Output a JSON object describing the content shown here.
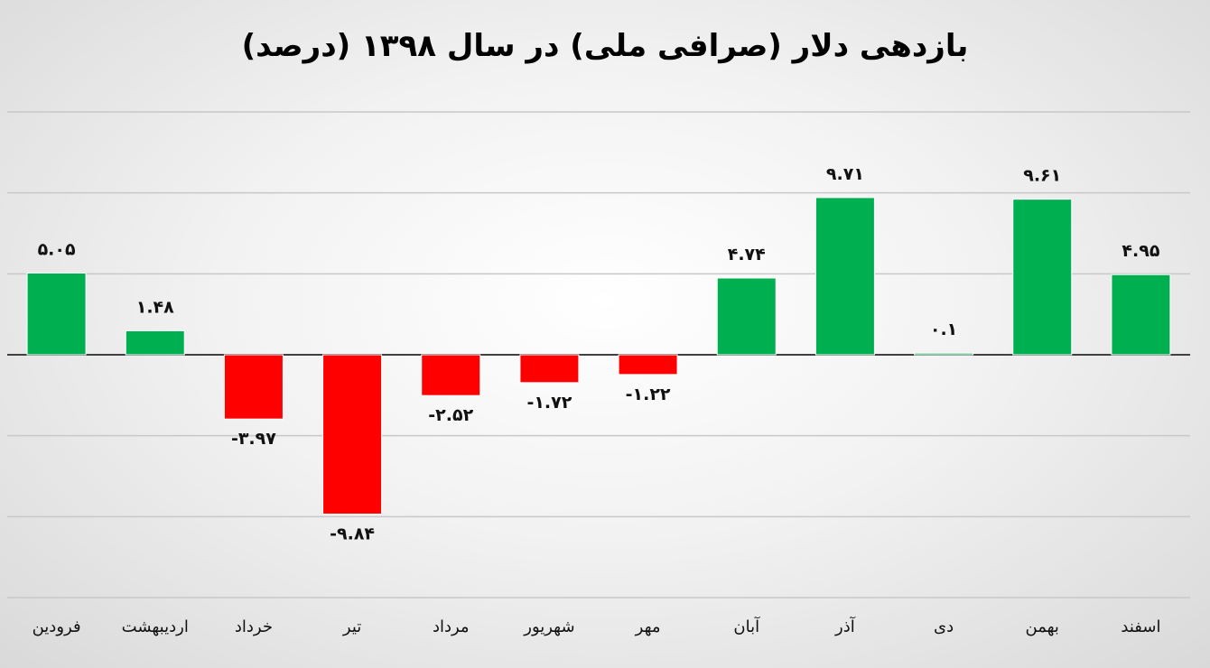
{
  "chart_data": {
    "type": "bar",
    "title": "بازدهی دلار (صرافی ملی) در سال ۱۳۹۸ (درصد)",
    "categories": [
      "فرودین",
      "اردیبهشت",
      "خرداد",
      "تیر",
      "مرداد",
      "شهریور",
      "مهر",
      "آبان",
      "آذر",
      "دی",
      "بهمن",
      "اسفند"
    ],
    "values": [
      5.05,
      1.48,
      -3.97,
      -9.84,
      -2.52,
      -1.72,
      -1.22,
      4.74,
      9.71,
      0.1,
      9.61,
      4.95
    ],
    "data_labels": [
      "۵.۰۵",
      "۱.۴۸",
      "-۳.۹۷",
      "-۹.۸۴",
      "-۲.۵۲",
      "-۱.۷۲",
      "-۱.۲۲",
      "۴.۷۴",
      "۹.۷۱",
      "۰.۱",
      "۹.۶۱",
      "۴.۹۵"
    ],
    "xlabel": "",
    "ylabel": "",
    "ylim": [
      -15,
      15
    ],
    "grid": true,
    "y_axis_labels_shown": false,
    "legend": "none",
    "colors": {
      "positive": "#00b050",
      "negative": "#ff0000",
      "grid": "#c8c8c8",
      "axis": "#404040"
    }
  }
}
